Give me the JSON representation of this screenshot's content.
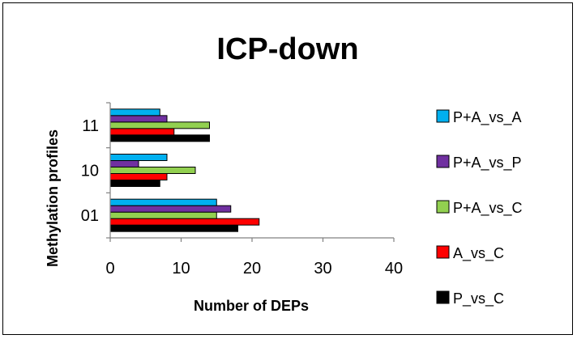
{
  "chart_data": {
    "type": "bar",
    "orientation": "horizontal",
    "title": "ICP-down",
    "xlabel": "Number of DEPs",
    "ylabel": "Methylation  profiles",
    "categories": [
      "01",
      "10",
      "11"
    ],
    "xlim": [
      0,
      40
    ],
    "xticks": [
      "0",
      "10",
      "20",
      "30",
      "40"
    ],
    "grid": false,
    "legend_position": "right",
    "series": [
      {
        "name": "P_vs_C",
        "color": "#000000",
        "values": [
          18,
          7,
          14
        ]
      },
      {
        "name": "A_vs_C",
        "color": "#ff0000",
        "values": [
          21,
          8,
          9
        ]
      },
      {
        "name": "P+A_vs_C",
        "color": "#92d050",
        "values": [
          15,
          12,
          14
        ]
      },
      {
        "name": "P+A_vs_P",
        "color": "#7030a0",
        "values": [
          17,
          4,
          8
        ]
      },
      {
        "name": "P+A_vs_A",
        "color": "#00b0f0",
        "values": [
          15,
          8,
          7
        ]
      }
    ],
    "legend_order": [
      "P+A_vs_A",
      "P+A_vs_P",
      "P+A_vs_C",
      "A_vs_C",
      "P_vs_C"
    ]
  }
}
